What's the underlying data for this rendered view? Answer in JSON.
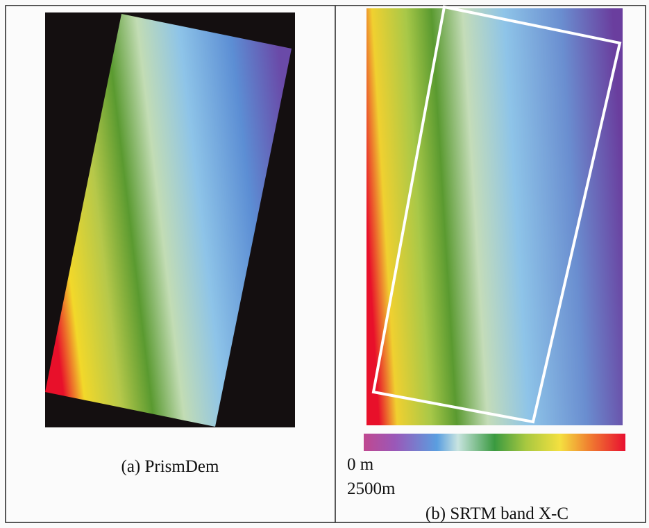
{
  "panels": [
    {
      "caption": "(a) PrismDem"
    },
    {
      "caption": "(b) SRTM band X-C",
      "colorbar": {
        "min_label": "0 m",
        "max_label": "2500m"
      }
    }
  ]
}
